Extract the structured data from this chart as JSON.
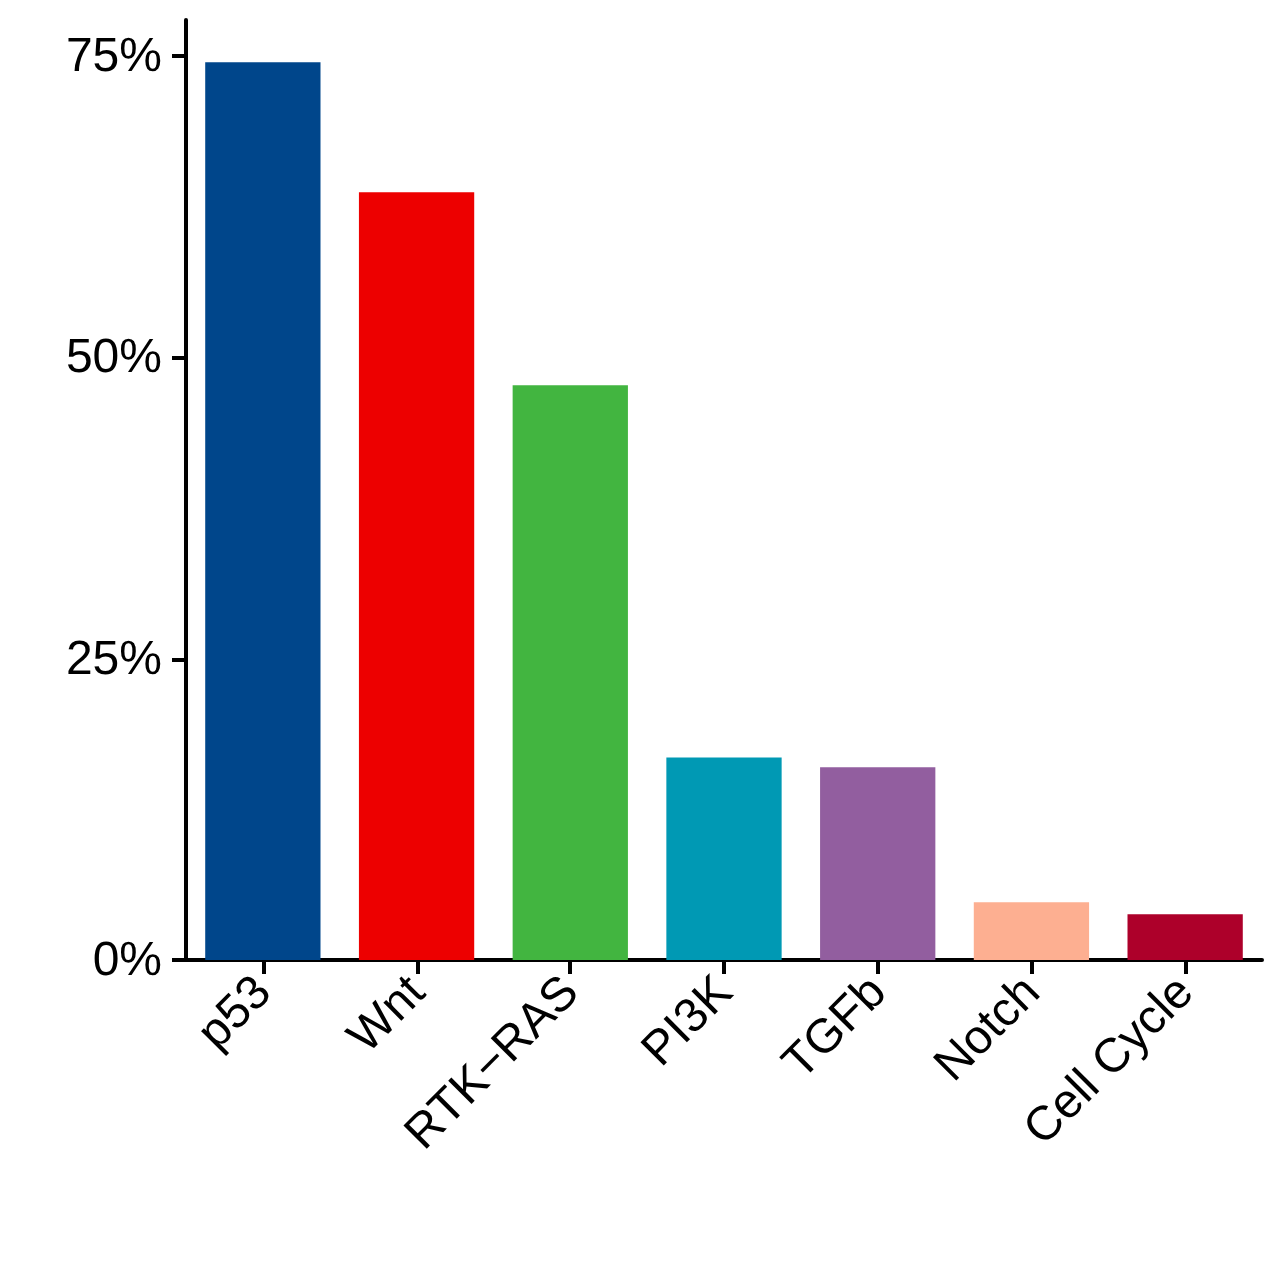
{
  "chart_data": {
    "type": "bar",
    "categories": [
      "p53",
      "Wnt",
      "RTK−RAS",
      "PI3K",
      "TGFb",
      "Notch",
      "Cell Cycle"
    ],
    "values": [
      74.5,
      63.7,
      47.7,
      16.8,
      16,
      4.8,
      3.8
    ],
    "colors": [
      "#00468b",
      "#ed0000",
      "#42b540",
      "#0099b4",
      "#925e9f",
      "#fdaf91",
      "#ad002a"
    ],
    "ylim": [
      0,
      78
    ],
    "yticks": [
      {
        "value": 0,
        "label": "0%"
      },
      {
        "value": 25,
        "label": "25%"
      },
      {
        "value": 50,
        "label": "50%"
      },
      {
        "value": 75,
        "label": "75%"
      }
    ],
    "grid": false
  }
}
